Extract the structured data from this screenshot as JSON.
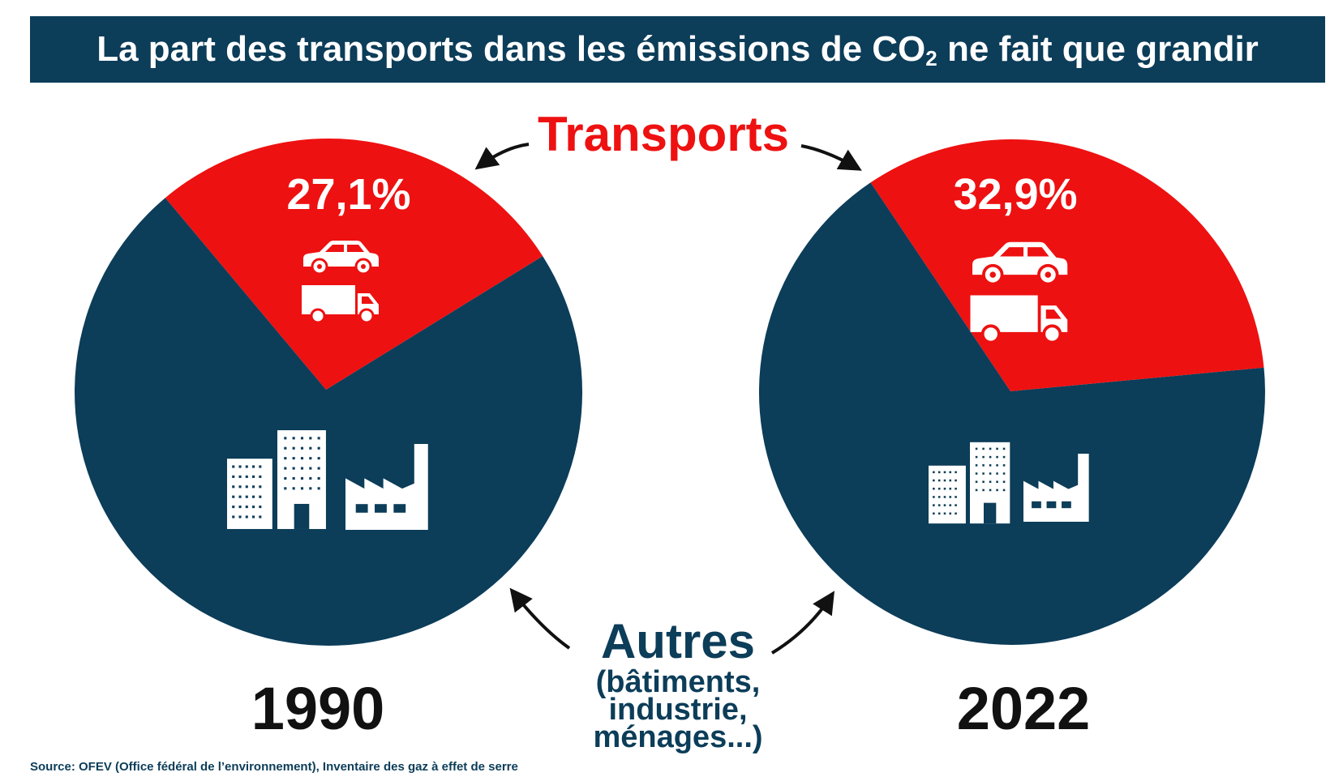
{
  "title": {
    "text": "La part des transports dans les émissions de CO",
    "subscript": "2",
    "suffix": " ne fait que grandir"
  },
  "colors": {
    "transports": "#ee1111",
    "autres": "#0c3d59",
    "title_bg": "#0c3d59",
    "year_text": "#111111"
  },
  "labels": {
    "transports": "Transports",
    "autres": "Autres",
    "autres_detail": [
      "(bâtiments,",
      "industrie,",
      "ménages...)"
    ]
  },
  "icons": {
    "transports": [
      "car-icon",
      "truck-icon"
    ],
    "autres": [
      "buildings-icon",
      "factory-icon"
    ]
  },
  "chart_data": [
    {
      "type": "pie",
      "label": "1990",
      "slices": [
        {
          "name": "Transports",
          "value": 27.1,
          "label": "27,1%"
        },
        {
          "name": "Autres",
          "value": 72.9
        }
      ]
    },
    {
      "type": "pie",
      "label": "2022",
      "slices": [
        {
          "name": "Transports",
          "value": 32.9,
          "label": "32,9%"
        },
        {
          "name": "Autres",
          "value": 67.1
        }
      ]
    }
  ],
  "source": "Source: OFEV (Office fédéral de l’environnement), Inventaire des gaz à effet de serre"
}
